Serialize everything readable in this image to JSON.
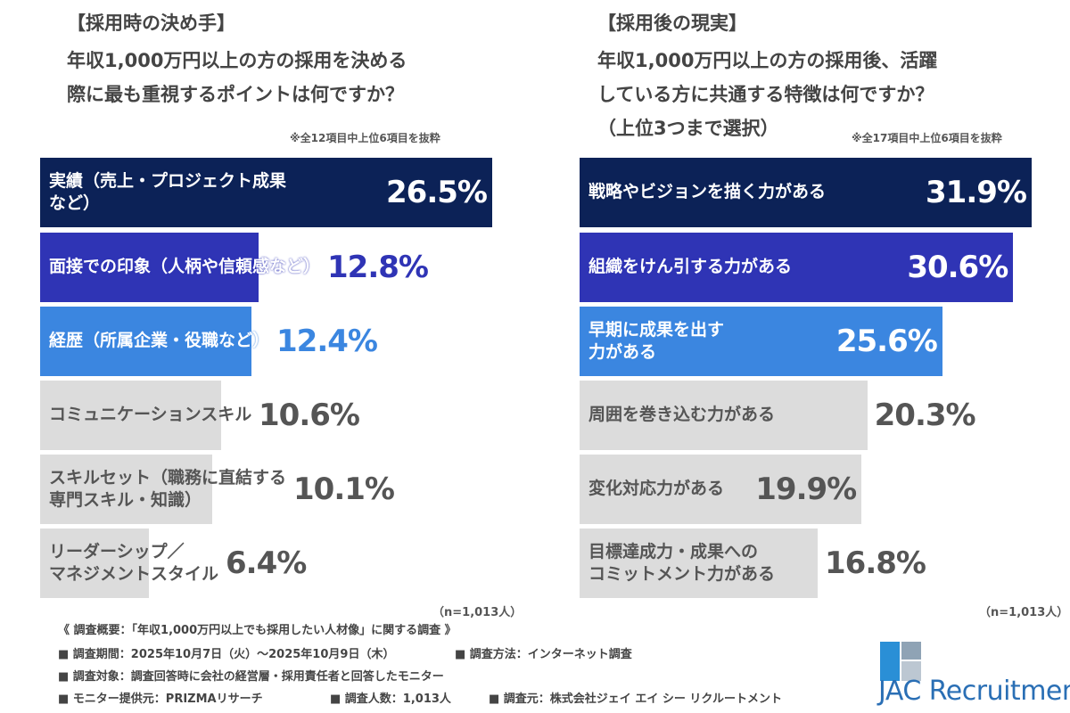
{
  "chart_data": [
    {
      "type": "bar",
      "orientation": "horizontal",
      "heading": "【採用時の決め手】",
      "title_lines": [
        "年収1,000万円以上の方の採用を決める",
        "際に最も重視するポイントは何ですか？"
      ],
      "note": "※全12項目中上位6項目を抜粋",
      "categories": [
        "実績（売上・プロジェクト成果\nなど）",
        "面接での印象（人柄や信頼感など）",
        "経歴（所属企業・役職など）",
        "コミュニケーションスキル",
        "スキルセット（職務に直結する\n専門スキル・知識）",
        "リーダーシップ／\nマネジメントスタイル"
      ],
      "values": [
        26.5,
        12.8,
        12.4,
        10.6,
        10.1,
        6.4
      ],
      "value_labels": [
        "26.5%",
        "12.8%",
        "12.4%",
        "10.6%",
        "10.1%",
        "6.4%"
      ],
      "colors": [
        "#0c2257",
        "#2f34b5",
        "#3b86e0",
        "#dcdcdc",
        "#dcdcdc",
        "#dcdcdc"
      ],
      "label_colors": [
        "#ffffff",
        "#ffffff",
        "#ffffff",
        "#555555",
        "#555555",
        "#555555"
      ],
      "sample": "（n=1,013人）"
    },
    {
      "type": "bar",
      "orientation": "horizontal",
      "heading": "【採用後の現実】",
      "title_lines": [
        "年収1,000万円以上の方の採用後、活躍",
        "している方に共通する特徴は何ですか？",
        "（上位3つまで選択）"
      ],
      "note": "※全17項目中上位6項目を抜粋",
      "categories": [
        "戦略やビジョンを描く力がある",
        "組織をけん引する力がある",
        "早期に成果を出す\n力がある",
        "周囲を巻き込む力がある",
        "変化対応力がある",
        "目標達成力・成果への\nコミットメント力がある"
      ],
      "values": [
        31.9,
        30.6,
        25.6,
        20.3,
        19.9,
        16.8
      ],
      "value_labels": [
        "31.9%",
        "30.6%",
        "25.6%",
        "20.3%",
        "19.9%",
        "16.8%"
      ],
      "colors": [
        "#0c2257",
        "#2f34b5",
        "#3b86e0",
        "#dcdcdc",
        "#dcdcdc",
        "#dcdcdc"
      ],
      "label_colors": [
        "#ffffff",
        "#ffffff",
        "#ffffff",
        "#555555",
        "#555555",
        "#555555"
      ],
      "sample": "（n=1,013人）"
    }
  ],
  "footer": {
    "title": "《 調査概要：「年収1,000万円以上でも採用したい人材像」に関する調査 》",
    "items": [
      [
        "■ 調査期間：2025年10月7日（火）〜2025年10月9日（木）",
        "■ 調査方法：インターネット調査"
      ],
      [
        "■ 調査対象：調査回答時に会社の経営層・採用責任者と回答したモニター"
      ],
      [
        "■ モニター提供元：PRIZMAリサーチ",
        "■ 調査人数：1,013人",
        "■ 調査元：株式会社ジェイ エイ シー リクルートメント"
      ]
    ]
  },
  "logo": "JAC Recruitment"
}
